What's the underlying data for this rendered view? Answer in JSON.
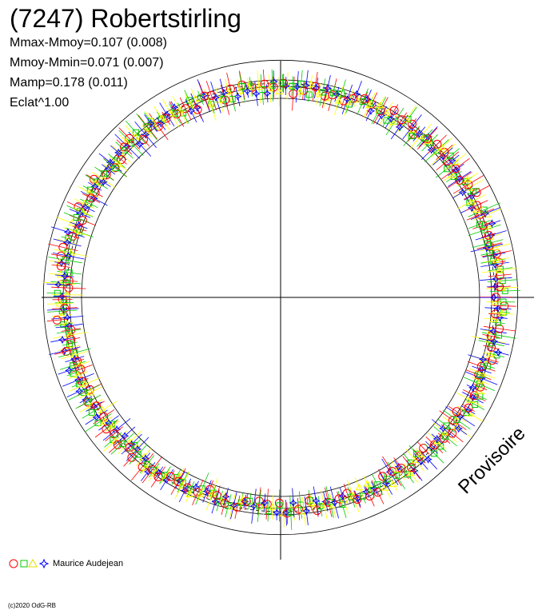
{
  "chart_data": {
    "type": "scatter",
    "title": "(7247) Robertstirling",
    "stats": [
      "Mmax-Mmoy=0.107 (0.008)",
      "Mmoy-Mmin=0.071 (0.007)",
      "Mamp=0.178 (0.011)",
      "Eclat^1.00"
    ],
    "projection": "polar",
    "grid": false,
    "legend_position": "bottom-left",
    "legend_label": "Maurice Audejean",
    "series_colors": [
      "#ff0000",
      "#00cc00",
      "#ffff00",
      "#0000ff"
    ],
    "series_markers": [
      "circle",
      "square",
      "triangle",
      "star"
    ],
    "radius_scale": {
      "r_mean": 1.0,
      "r_max": 1.107,
      "r_min": 0.929,
      "r_band": 0.015
    },
    "note": "Provisoire",
    "copyright": "(c)2020 OdG-RB"
  }
}
